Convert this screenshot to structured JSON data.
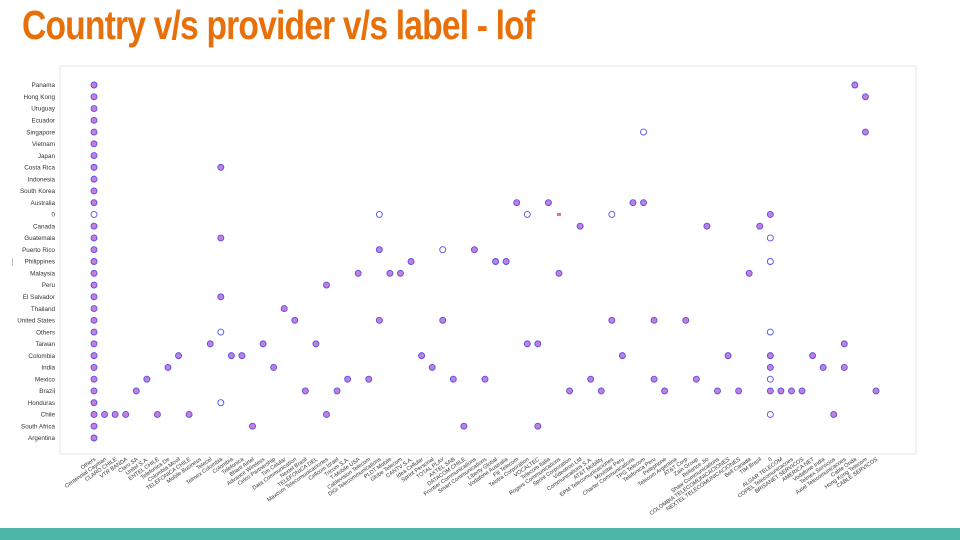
{
  "slide": {
    "title": "Country  v/s provider v/s label - lof",
    "title_color": "#e8700a",
    "footer_bar_color": "#4db6a8"
  },
  "chart_data": {
    "type": "scatter",
    "title": "",
    "xlabel": "",
    "ylabel": "",
    "grid": false,
    "legend": "none",
    "y_categories": [
      "Panama",
      "Hong Kong",
      "Uruguay",
      "Ecuador",
      "Singapore",
      "Vietnam",
      "Japan",
      "Costa Rica",
      "Indonesia",
      "South Korea",
      "Australia",
      "0",
      "Canada",
      "Guatemala",
      "Puerto Rico",
      "Philippines",
      "Malaysia",
      "Peru",
      "El Salvador",
      "Thailand",
      "United States",
      "Others",
      "Taiwan",
      "Colombia",
      "India",
      "Mexico",
      "Brazil",
      "Honduras",
      "Chile",
      "South Africa",
      "Argentina"
    ],
    "x_categories": [
      "Others",
      "Centennial Cayman",
      "CLARO CHILE",
      "VTR BANDA",
      "Claro SA",
      "Unitel S.A.",
      "ENTEL CHILE",
      "Telefonica De",
      "Colombia Movil",
      "TELEFONICA CHILE",
      "Mobile Business",
      "Telecel",
      "Telmex Colombia",
      "Colombia",
      "Telefonica",
      "Bharti Airtel",
      "Advance Wireless",
      "Celco Partnership",
      "Tim Celular",
      "Data Communication",
      "Nextel Brasil",
      "TELEFONICA DEL",
      "Maxcom Telecomunicaciones",
      "Cellcom Israel",
      "Tricom S.A.",
      "T-Mobile USA",
      "Cablevision Telecom",
      "DiGi Telecommunications",
      "PLDT Mobile",
      "Globe Telecom",
      "CANTV S.A.",
      "Idea Cellular",
      "Sprint Personal",
      "TOTAL PLAY",
      "AXTEL SAB",
      "DATACOM CHILE",
      "Frontier Communications",
      "Smart Communications",
      "Liberty Global",
      "Vodafone Australia",
      "Fiji Telecom",
      "Telstra Corporation",
      "VOCALTEC",
      "Telecom Italia",
      "Rogers Communications",
      "Sprint Corporation",
      "Videotron Ltd",
      "Communications S.A.",
      "AT&T Mobility",
      "EPM Telecomunicaciones",
      "Movistar Peru",
      "Charter Communications",
      "TPG Telecom",
      "Telefonica Peru",
      "Pelephone",
      "Telecom Argentina",
      "AT&T Corp",
      "Zain Group",
      "Reliance Jio",
      "Shaw Communications",
      "COLOMBIA TELECOMUNICACIONES",
      "NEXTEL TELECOMUNICACIONES",
      "Bell Canada",
      "TIM Brasil",
      "0",
      "ALGAR TELECOM",
      "COPEL Telecomunicacoes",
      "BRISANET SERVICOS",
      "AMERICA NET",
      "Vodafone India",
      "Telmex Servicios",
      "Axtel Telecomunicacoes",
      "Cable Onda",
      "Hong Kong Telecom",
      "CABLE SERVICOS"
    ],
    "x_tick_labels": [
      "Others",
      "Centennial Cayman",
      "CLARO CHILE",
      "VTR BANDA",
      "Claro SA",
      "Unitel S.A.",
      "ENTEL CHILE",
      "Telefonica De",
      "Colombia Movil",
      "TELEFONICA CHILE",
      "Mobile Business",
      "Telecel",
      "Telmex Colombia",
      "Colombia",
      "Telefonica",
      "Bharti Airtel",
      "Advance Wireless",
      "Celco Partnership",
      "Tim Celular",
      "Data Communication",
      "Nextel Brasil",
      "TELEFONICA DEL",
      "Maxcom Telecomunicaciones",
      "Cellcom Israel",
      "Tricom S.A.",
      "T-Mobile USA",
      "Cablevision Telecom",
      "DiGi Telecommunications",
      "PLDT Mobile",
      "Globe Telecom",
      "CANTV S.A.",
      "Idea Cellular",
      "Sprint Personal",
      "TOTAL PLAY",
      "AXTEL SAB",
      "DATACOM CHILE",
      "Frontier Communications",
      "Smart Communications",
      "Liberty Global",
      "Vodafone Australia",
      "Fiji Telecom",
      "Telstra Corporation",
      "VOCALTEC",
      "Telecom Italia",
      "Rogers Communications",
      "Sprint Corporation",
      "Videotron Ltd",
      "Communications S.A.",
      "AT&T Mobility",
      "EPM Telecomunicaciones",
      "Movistar Peru",
      "Charter Communications",
      "TPG Telecom",
      "Telefonica Peru",
      "Pelephone",
      "Telecom Argentina",
      "AT&T Corp",
      "Zain Group",
      "Reliance Jio",
      "Shaw Communications",
      "COLOMBIA TELECOMUNICACIONES",
      "NEXTEL TELECOMUNICACIONES",
      "Bell Canada",
      "TIM Brasil",
      "0",
      "ALGAR TELECOM",
      "COPEL Telecomunicacoes",
      "BRISANET SERVICOS",
      "AMERICA NET",
      "Vodafone India",
      "Telmex Servicios",
      "Axtel Telecomunicacoes",
      "Cable Onda",
      "Hong Kong Telecom",
      "CABLE SERVICOS"
    ],
    "marker_styles": {
      "filled": {
        "fill": "#c77fd6",
        "stroke": "#4f4ff0"
      },
      "hollow": {
        "fill": "#ffffff",
        "stroke": "#4f4ff0"
      },
      "dash": {
        "color": "#f07070"
      }
    },
    "points": [
      {
        "x": "Others",
        "y": "Panama",
        "style": "filled"
      },
      {
        "x": "Others",
        "y": "Hong Kong",
        "style": "filled"
      },
      {
        "x": "Others",
        "y": "Uruguay",
        "style": "filled"
      },
      {
        "x": "Others",
        "y": "Ecuador",
        "style": "filled"
      },
      {
        "x": "Others",
        "y": "Singapore",
        "style": "filled"
      },
      {
        "x": "Others",
        "y": "Vietnam",
        "style": "filled"
      },
      {
        "x": "Others",
        "y": "Japan",
        "style": "filled"
      },
      {
        "x": "Others",
        "y": "Costa Rica",
        "style": "filled"
      },
      {
        "x": "Others",
        "y": "Indonesia",
        "style": "filled"
      },
      {
        "x": "Others",
        "y": "South Korea",
        "style": "filled"
      },
      {
        "x": "Others",
        "y": "Australia",
        "style": "filled"
      },
      {
        "x": "Others",
        "y": "0",
        "style": "hollow"
      },
      {
        "x": "Others",
        "y": "Canada",
        "style": "filled"
      },
      {
        "x": "Others",
        "y": "Guatemala",
        "style": "filled"
      },
      {
        "x": "Others",
        "y": "Puerto Rico",
        "style": "filled"
      },
      {
        "x": "Others",
        "y": "Philippines",
        "style": "filled"
      },
      {
        "x": "Others",
        "y": "Malaysia",
        "style": "filled"
      },
      {
        "x": "Others",
        "y": "Peru",
        "style": "filled"
      },
      {
        "x": "Others",
        "y": "El Salvador",
        "style": "filled"
      },
      {
        "x": "Others",
        "y": "Thailand",
        "style": "filled"
      },
      {
        "x": "Others",
        "y": "United States",
        "style": "filled"
      },
      {
        "x": "Others",
        "y": "Others",
        "style": "filled"
      },
      {
        "x": "Others",
        "y": "Taiwan",
        "style": "filled"
      },
      {
        "x": "Others",
        "y": "Colombia",
        "style": "filled"
      },
      {
        "x": "Others",
        "y": "India",
        "style": "filled"
      },
      {
        "x": "Others",
        "y": "Mexico",
        "style": "filled"
      },
      {
        "x": "Others",
        "y": "Brazil",
        "style": "filled"
      },
      {
        "x": "Others",
        "y": "Honduras",
        "style": "filled"
      },
      {
        "x": "Others",
        "y": "Chile",
        "style": "filled"
      },
      {
        "x": "Others",
        "y": "South Africa",
        "style": "filled"
      },
      {
        "x": "Others",
        "y": "Argentina",
        "style": "filled"
      },
      {
        "x": "Centennial Cayman",
        "y": "Chile",
        "style": "filled"
      },
      {
        "x": "CLARO CHILE",
        "y": "Chile",
        "style": "filled"
      },
      {
        "x": "VTR BANDA",
        "y": "Chile",
        "style": "filled"
      },
      {
        "x": "Claro SA",
        "y": "Brazil",
        "style": "filled"
      },
      {
        "x": "Unitel S.A.",
        "y": "Mexico",
        "style": "filled"
      },
      {
        "x": "ENTEL CHILE",
        "y": "Chile",
        "style": "filled"
      },
      {
        "x": "Telefonica De",
        "y": "India",
        "style": "filled"
      },
      {
        "x": "Colombia Movil",
        "y": "Colombia",
        "style": "filled"
      },
      {
        "x": "TELEFONICA CHILE",
        "y": "Chile",
        "style": "filled"
      },
      {
        "x": "Telecel",
        "y": "Taiwan",
        "style": "filled"
      },
      {
        "x": "Telmex Colombia",
        "y": "Costa Rica",
        "style": "filled"
      },
      {
        "x": "Telmex Colombia",
        "y": "Guatemala",
        "style": "filled"
      },
      {
        "x": "Telmex Colombia",
        "y": "El Salvador",
        "style": "filled"
      },
      {
        "x": "Telmex Colombia",
        "y": "Others",
        "style": "hollow"
      },
      {
        "x": "Telmex Colombia",
        "y": "Honduras",
        "style": "hollow"
      },
      {
        "x": "Colombia",
        "y": "Colombia",
        "style": "filled"
      },
      {
        "x": "Telefonica",
        "y": "Colombia",
        "style": "filled"
      },
      {
        "x": "Bharti Airtel",
        "y": "South Africa",
        "style": "filled"
      },
      {
        "x": "Advance Wireless",
        "y": "Taiwan",
        "style": "filled"
      },
      {
        "x": "Celco Partnership",
        "y": "India",
        "style": "filled"
      },
      {
        "x": "Tim Celular",
        "y": "Thailand",
        "style": "filled"
      },
      {
        "x": "Data Communication",
        "y": "United States",
        "style": "filled"
      },
      {
        "x": "Nextel Brasil",
        "y": "Brazil",
        "style": "filled"
      },
      {
        "x": "TELEFONICA DEL",
        "y": "Taiwan",
        "style": "filled"
      },
      {
        "x": "Maxcom Telecomunicaciones",
        "y": "Peru",
        "style": "filled"
      },
      {
        "x": "Maxcom Telecomunicaciones",
        "y": "Chile",
        "style": "filled"
      },
      {
        "x": "Cellcom Israel",
        "y": "Brazil",
        "style": "filled"
      },
      {
        "x": "Tricom S.A.",
        "y": "Mexico",
        "style": "filled"
      },
      {
        "x": "T-Mobile USA",
        "y": "Malaysia",
        "style": "filled"
      },
      {
        "x": "Cablevision Telecom",
        "y": "Mexico",
        "style": "filled"
      },
      {
        "x": "DiGi Telecommunications",
        "y": "0",
        "style": "hollow"
      },
      {
        "x": "DiGi Telecommunications",
        "y": "Puerto Rico",
        "style": "filled"
      },
      {
        "x": "DiGi Telecommunications",
        "y": "United States",
        "style": "filled"
      },
      {
        "x": "PLDT Mobile",
        "y": "Malaysia",
        "style": "filled"
      },
      {
        "x": "Globe Telecom",
        "y": "Malaysia",
        "style": "filled"
      },
      {
        "x": "CANTV S.A.",
        "y": "Philippines",
        "style": "filled"
      },
      {
        "x": "Idea Cellular",
        "y": "Colombia",
        "style": "filled"
      },
      {
        "x": "Sprint Personal",
        "y": "India",
        "style": "filled"
      },
      {
        "x": "TOTAL PLAY",
        "y": "Puerto Rico",
        "style": "hollow"
      },
      {
        "x": "TOTAL PLAY",
        "y": "United States",
        "style": "filled"
      },
      {
        "x": "AXTEL SAB",
        "y": "Mexico",
        "style": "filled"
      },
      {
        "x": "DATACOM CHILE",
        "y": "South Africa",
        "style": "filled"
      },
      {
        "x": "Frontier Communications",
        "y": "Puerto Rico",
        "style": "filled"
      },
      {
        "x": "Smart Communications",
        "y": "Mexico",
        "style": "filled"
      },
      {
        "x": "Liberty Global",
        "y": "Philippines",
        "style": "filled"
      },
      {
        "x": "Vodafone Australia",
        "y": "Philippines",
        "style": "filled"
      },
      {
        "x": "Fiji Telecom",
        "y": "Australia",
        "style": "filled"
      },
      {
        "x": "Telstra Corporation",
        "y": "0",
        "style": "hollow"
      },
      {
        "x": "Telstra Corporation",
        "y": "Taiwan",
        "style": "filled"
      },
      {
        "x": "VOCALTEC",
        "y": "Taiwan",
        "style": "filled"
      },
      {
        "x": "VOCALTEC",
        "y": "South Africa",
        "style": "filled"
      },
      {
        "x": "Telecom Italia",
        "y": "Australia",
        "style": "filled"
      },
      {
        "x": "Rogers Communications",
        "y": "0",
        "style": "dash"
      },
      {
        "x": "Rogers Communications",
        "y": "Malaysia",
        "style": "filled"
      },
      {
        "x": "Sprint Corporation",
        "y": "Brazil",
        "style": "filled"
      },
      {
        "x": "Videotron Ltd",
        "y": "Canada",
        "style": "filled"
      },
      {
        "x": "Communications S.A.",
        "y": "Mexico",
        "style": "filled"
      },
      {
        "x": "AT&T Mobility",
        "y": "Brazil",
        "style": "filled"
      },
      {
        "x": "EPM Telecomunicaciones",
        "y": "0",
        "style": "hollow"
      },
      {
        "x": "EPM Telecomunicaciones",
        "y": "United States",
        "style": "filled"
      },
      {
        "x": "Movistar Peru",
        "y": "Colombia",
        "style": "filled"
      },
      {
        "x": "Charter Communications",
        "y": "Australia",
        "style": "filled"
      },
      {
        "x": "TPG Telecom",
        "y": "Singapore",
        "style": "hollow"
      },
      {
        "x": "TPG Telecom",
        "y": "Australia",
        "style": "filled"
      },
      {
        "x": "Telefonica Peru",
        "y": "United States",
        "style": "filled"
      },
      {
        "x": "Telefonica Peru",
        "y": "Mexico",
        "style": "filled"
      },
      {
        "x": "Pelephone",
        "y": "Brazil",
        "style": "filled"
      },
      {
        "x": "AT&T Corp",
        "y": "United States",
        "style": "filled"
      },
      {
        "x": "Zain Group",
        "y": "Mexico",
        "style": "filled"
      },
      {
        "x": "Reliance Jio",
        "y": "Canada",
        "style": "filled"
      },
      {
        "x": "Shaw Communications",
        "y": "Brazil",
        "style": "filled"
      },
      {
        "x": "COLOMBIA TELECOMUNICACIONES",
        "y": "Colombia",
        "style": "filled"
      },
      {
        "x": "NEXTEL TELECOMUNICACIONES",
        "y": "Brazil",
        "style": "filled"
      },
      {
        "x": "Bell Canada",
        "y": "Malaysia",
        "style": "filled"
      },
      {
        "x": "TIM Brasil",
        "y": "Canada",
        "style": "filled"
      },
      {
        "x": "0",
        "y": "0",
        "style": "filled"
      },
      {
        "x": "0",
        "y": "Guatemala",
        "style": "hollow"
      },
      {
        "x": "0",
        "y": "Philippines",
        "style": "hollow"
      },
      {
        "x": "0",
        "y": "Others",
        "style": "hollow"
      },
      {
        "x": "0",
        "y": "Colombia",
        "style": "filled"
      },
      {
        "x": "0",
        "y": "India",
        "style": "filled"
      },
      {
        "x": "0",
        "y": "Mexico",
        "style": "hollow"
      },
      {
        "x": "0",
        "y": "Brazil",
        "style": "filled"
      },
      {
        "x": "0",
        "y": "Chile",
        "style": "hollow"
      },
      {
        "x": "ALGAR TELECOM",
        "y": "Brazil",
        "style": "filled"
      },
      {
        "x": "COPEL Telecomunicacoes",
        "y": "Brazil",
        "style": "filled"
      },
      {
        "x": "BRISANET SERVICOS",
        "y": "Brazil",
        "style": "filled"
      },
      {
        "x": "AMERICA NET",
        "y": "Colombia",
        "style": "filled"
      },
      {
        "x": "Vodafone India",
        "y": "India",
        "style": "filled"
      },
      {
        "x": "Telmex Servicios",
        "y": "Chile",
        "style": "filled"
      },
      {
        "x": "Axtel Telecomunicacoes",
        "y": "Taiwan",
        "style": "filled"
      },
      {
        "x": "Axtel Telecomunicacoes",
        "y": "India",
        "style": "filled"
      },
      {
        "x": "Cable Onda",
        "y": "Panama",
        "style": "filled"
      },
      {
        "x": "Hong Kong Telecom",
        "y": "Hong Kong",
        "style": "filled"
      },
      {
        "x": "Hong Kong Telecom",
        "y": "Singapore",
        "style": "filled"
      },
      {
        "x": "CABLE SERVICOS",
        "y": "Brazil",
        "style": "filled"
      }
    ]
  }
}
